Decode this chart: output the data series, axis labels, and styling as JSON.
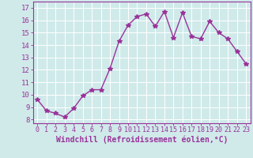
{
  "x": [
    0,
    1,
    2,
    3,
    4,
    5,
    6,
    7,
    8,
    9,
    10,
    11,
    12,
    13,
    14,
    15,
    16,
    17,
    18,
    19,
    20,
    21,
    22,
    23
  ],
  "y": [
    9.6,
    8.7,
    8.5,
    8.2,
    8.9,
    9.9,
    10.4,
    10.4,
    12.1,
    14.3,
    15.6,
    16.3,
    16.5,
    15.5,
    16.7,
    14.6,
    16.6,
    14.7,
    14.5,
    15.9,
    15.0,
    14.5,
    13.5,
    12.5
  ],
  "line_color": "#993399",
  "marker": "*",
  "marker_size": 4,
  "bg_color": "#d0eaea",
  "grid_color": "#ffffff",
  "xlabel": "Windchill (Refroidissement éolien,°C)",
  "yticks": [
    8,
    9,
    10,
    11,
    12,
    13,
    14,
    15,
    16,
    17
  ],
  "xticks": [
    0,
    1,
    2,
    3,
    4,
    5,
    6,
    7,
    8,
    9,
    10,
    11,
    12,
    13,
    14,
    15,
    16,
    17,
    18,
    19,
    20,
    21,
    22,
    23
  ],
  "ylim": [
    7.7,
    17.5
  ],
  "xlim": [
    -0.5,
    23.5
  ],
  "xlabel_color": "#993399",
  "tick_color": "#993399",
  "axis_color": "#993399",
  "xlabel_fontsize": 7.0,
  "ytick_fontsize": 6.5,
  "xtick_fontsize": 6.0
}
